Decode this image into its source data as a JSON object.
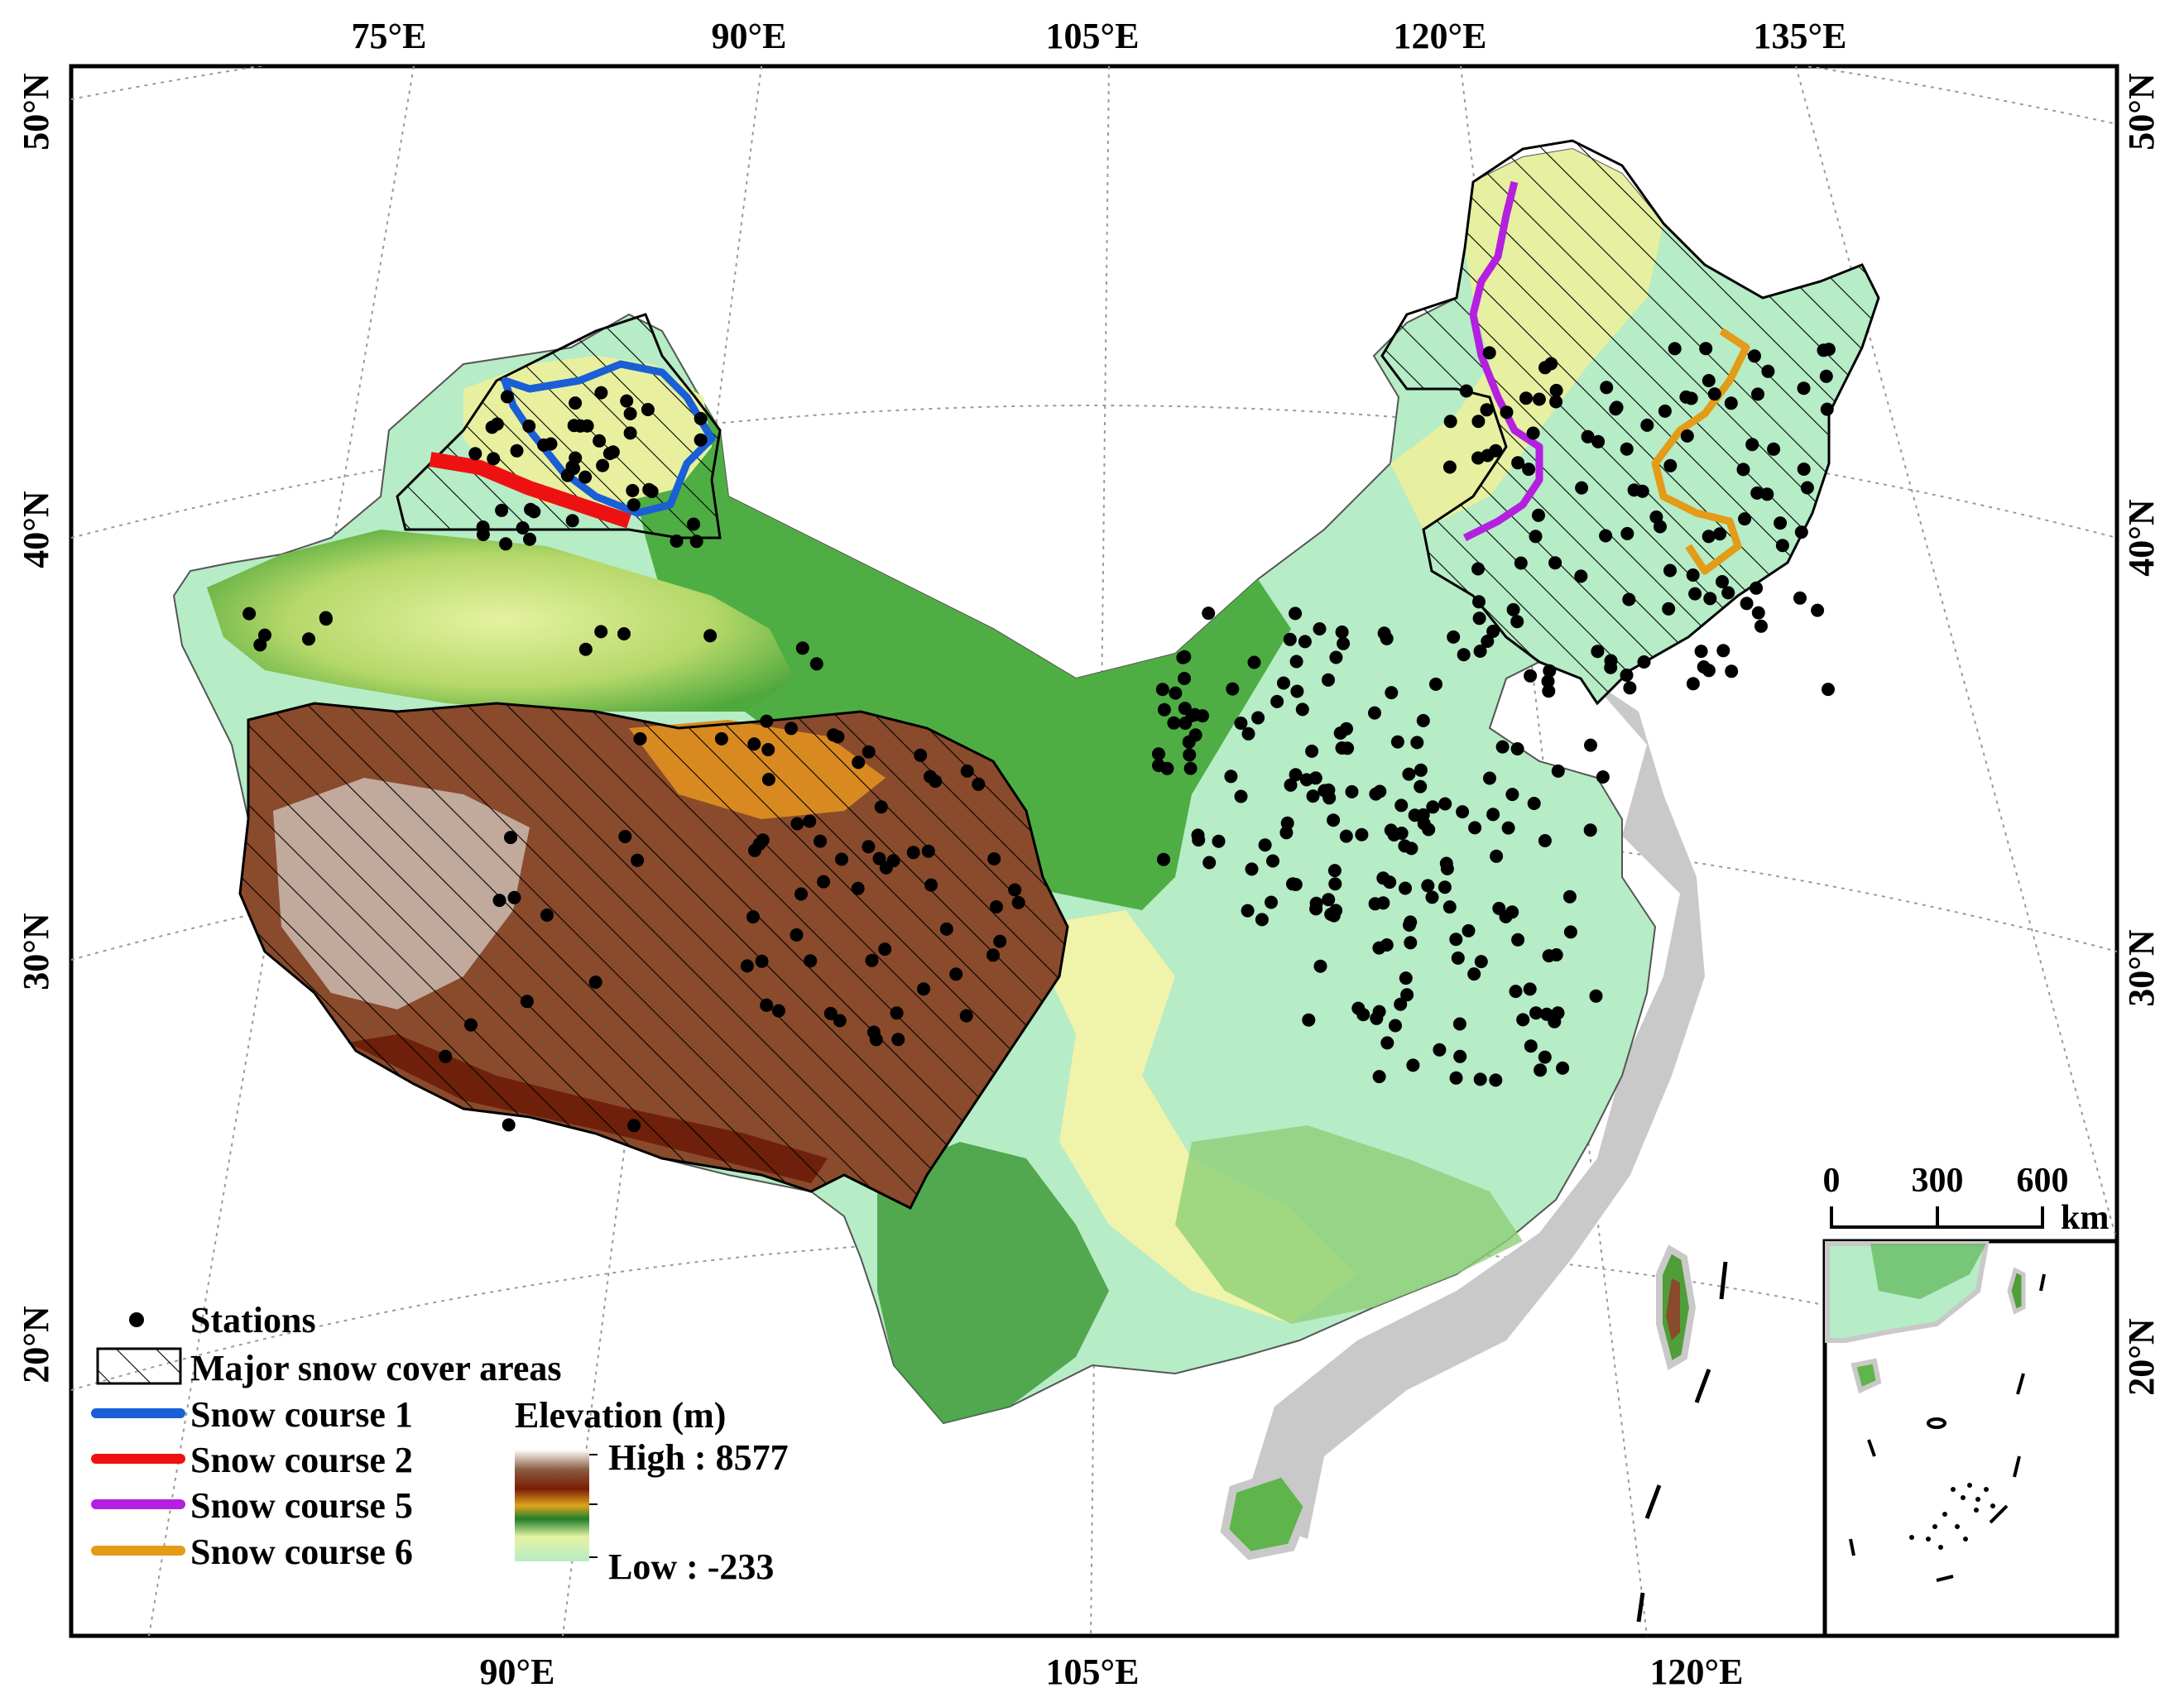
{
  "top_lon_labels": [
    "75°E",
    "90°E",
    "105°E",
    "120°E",
    "135°E"
  ],
  "bottom_lon_labels": [
    "90°E",
    "105°E",
    "120°E"
  ],
  "left_lat_labels": [
    "50°N",
    "40°N",
    "30°N",
    "20°N"
  ],
  "right_lat_labels": [
    "50°N",
    "40°N",
    "30°N",
    "20°N"
  ],
  "legend": {
    "stations_label": "Stations",
    "snow_areas_label": "Major snow cover areas",
    "courses": [
      {
        "label": "Snow course 1",
        "color": "#1a5fd6"
      },
      {
        "label": "Snow course 2",
        "color": "#ee1111"
      },
      {
        "label": "Snow course 5",
        "color": "#b51fe0"
      },
      {
        "label": "Snow course 6",
        "color": "#e39b18"
      }
    ]
  },
  "elevation": {
    "title": "Elevation (m)",
    "high": "High : 8577",
    "low": "Low : -233"
  },
  "scale_bar": {
    "ticks": [
      "0",
      "300",
      "600"
    ],
    "unit": "km"
  },
  "colors": {
    "lowland": "#b6ecc6",
    "plain": "#f0f3aa",
    "forest": "#4fae43",
    "plateau": "#8a4a2c",
    "snow_area_hatch": "#000000",
    "sea_shadow": "#c9c9c9"
  },
  "icons": [
    "station-dot-icon",
    "hatch-swatch-icon",
    "course-line-icon"
  ]
}
